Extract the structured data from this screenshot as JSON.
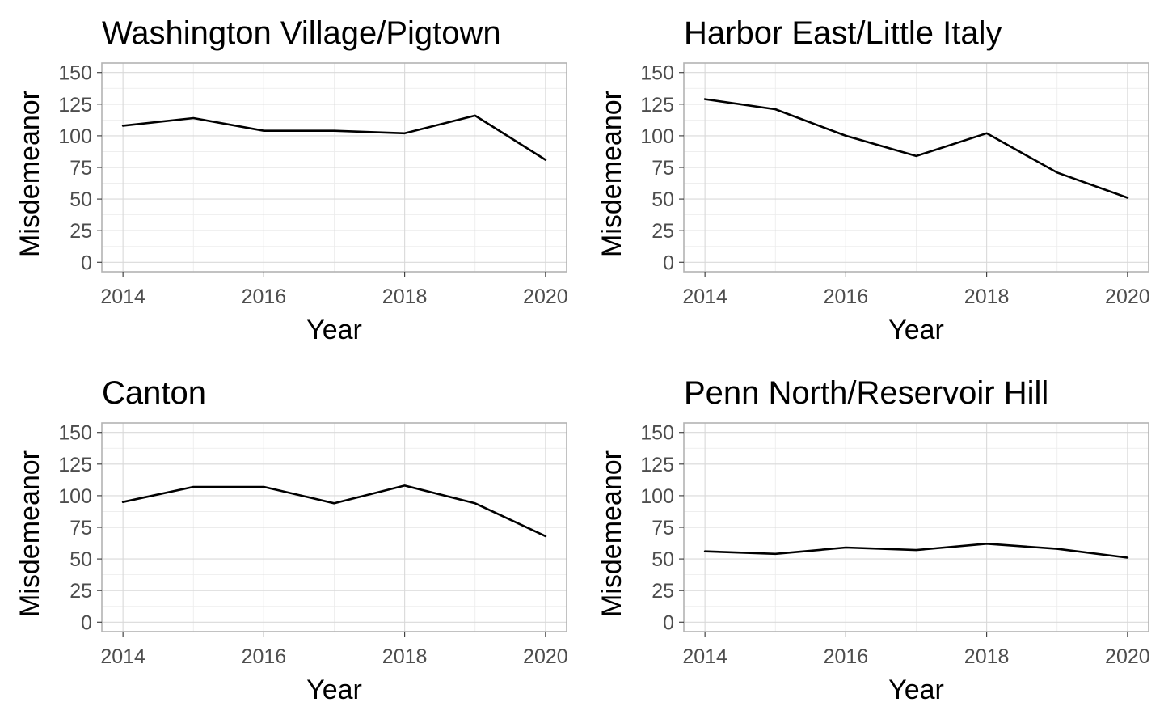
{
  "chart_data": [
    {
      "type": "line",
      "title": "Washington Village/Pigtown",
      "xlabel": "Year",
      "ylabel": "Misdemeanor",
      "x": [
        2014,
        2015,
        2016,
        2017,
        2018,
        2019,
        2020
      ],
      "values": [
        108,
        114,
        104,
        104,
        102,
        116,
        81
      ],
      "xlim": [
        2013.7,
        2020.3
      ],
      "ylim": [
        -7.5,
        157.5
      ],
      "xticks": [
        2014,
        2016,
        2018,
        2020
      ],
      "yticks": [
        0,
        25,
        50,
        75,
        100,
        125,
        150
      ],
      "grid": true
    },
    {
      "type": "line",
      "title": "Harbor East/Little Italy",
      "xlabel": "Year",
      "ylabel": "Misdemeanor",
      "x": [
        2014,
        2015,
        2016,
        2017,
        2018,
        2019,
        2020
      ],
      "values": [
        129,
        121,
        100,
        84,
        102,
        71,
        51
      ],
      "xlim": [
        2013.7,
        2020.3
      ],
      "ylim": [
        -7.5,
        157.5
      ],
      "xticks": [
        2014,
        2016,
        2018,
        2020
      ],
      "yticks": [
        0,
        25,
        50,
        75,
        100,
        125,
        150
      ],
      "grid": true
    },
    {
      "type": "line",
      "title": "Canton",
      "xlabel": "Year",
      "ylabel": "Misdemeanor",
      "x": [
        2014,
        2015,
        2016,
        2017,
        2018,
        2019,
        2020
      ],
      "values": [
        95,
        107,
        107,
        94,
        108,
        94,
        68
      ],
      "xlim": [
        2013.7,
        2020.3
      ],
      "ylim": [
        -7.5,
        157.5
      ],
      "xticks": [
        2014,
        2016,
        2018,
        2020
      ],
      "yticks": [
        0,
        25,
        50,
        75,
        100,
        125,
        150
      ],
      "grid": true
    },
    {
      "type": "line",
      "title": "Penn North/Reservoir Hill",
      "xlabel": "Year",
      "ylabel": "Misdemeanor",
      "x": [
        2014,
        2015,
        2016,
        2017,
        2018,
        2019,
        2020
      ],
      "values": [
        56,
        54,
        59,
        57,
        62,
        58,
        51
      ],
      "xlim": [
        2013.7,
        2020.3
      ],
      "ylim": [
        -7.5,
        157.5
      ],
      "xticks": [
        2014,
        2016,
        2018,
        2020
      ],
      "yticks": [
        0,
        25,
        50,
        75,
        100,
        125,
        150
      ],
      "grid": true
    }
  ]
}
